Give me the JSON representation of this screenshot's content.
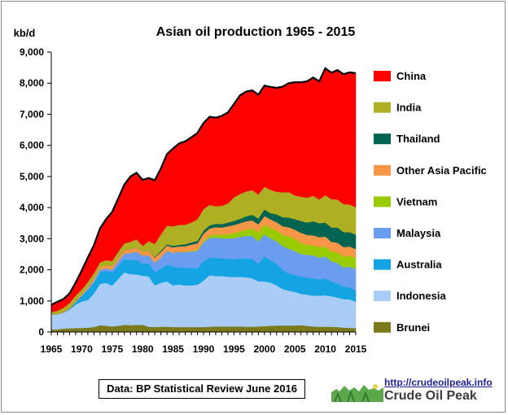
{
  "chart_data": {
    "type": "area",
    "stacked": true,
    "title": "Asian oil production 1965 - 2015",
    "unit_label": "kb/d",
    "xlabel": "",
    "ylabel": "",
    "x": [
      1965,
      1966,
      1967,
      1968,
      1969,
      1970,
      1971,
      1972,
      1973,
      1974,
      1975,
      1976,
      1977,
      1978,
      1979,
      1980,
      1981,
      1982,
      1983,
      1984,
      1985,
      1986,
      1987,
      1988,
      1989,
      1990,
      1991,
      1992,
      1993,
      1994,
      1995,
      1996,
      1997,
      1998,
      1999,
      2000,
      2001,
      2002,
      2003,
      2004,
      2005,
      2006,
      2007,
      2008,
      2009,
      2010,
      2011,
      2012,
      2013,
      2014,
      2015
    ],
    "xlim": [
      1965,
      2015
    ],
    "x_ticks": [
      1965,
      1970,
      1975,
      1980,
      1985,
      1990,
      1995,
      2000,
      2005,
      2010,
      2015
    ],
    "ylim": [
      0,
      9000
    ],
    "y_ticks": [
      0,
      1000,
      2000,
      3000,
      4000,
      5000,
      6000,
      7000,
      8000,
      9000
    ],
    "y_tick_labels": [
      "0",
      "1,000",
      "2,000",
      "3,000",
      "4,000",
      "5,000",
      "6,000",
      "7,000",
      "8,000",
      "9,000"
    ],
    "grid": false,
    "legend_position": "right",
    "series": [
      {
        "name": "Brunei",
        "color": "#7a7a1c",
        "values": [
          80,
          85,
          110,
          120,
          130,
          130,
          140,
          160,
          220,
          200,
          180,
          200,
          230,
          220,
          230,
          230,
          170,
          160,
          170,
          170,
          160,
          160,
          160,
          160,
          160,
          160,
          170,
          180,
          180,
          180,
          180,
          180,
          170,
          170,
          180,
          190,
          200,
          210,
          210,
          210,
          210,
          220,
          200,
          180,
          170,
          170,
          170,
          160,
          140,
          130,
          130
        ]
      },
      {
        "name": "Indonesia",
        "color": "#a9cdf6",
        "values": [
          480,
          480,
          510,
          600,
          750,
          850,
          890,
          1080,
          1330,
          1380,
          1310,
          1510,
          1690,
          1640,
          1620,
          1580,
          1620,
          1340,
          1410,
          1460,
          1340,
          1370,
          1340,
          1340,
          1360,
          1490,
          1660,
          1620,
          1620,
          1600,
          1590,
          1590,
          1590,
          1560,
          1450,
          1440,
          1390,
          1290,
          1170,
          1120,
          1080,
          1010,
          1000,
          990,
          1000,
          1010,
          980,
          950,
          920,
          920,
          840
        ]
      },
      {
        "name": "Australia",
        "color": "#14a4e4",
        "values": [
          5,
          5,
          10,
          30,
          80,
          180,
          320,
          330,
          370,
          390,
          420,
          420,
          420,
          460,
          460,
          380,
          420,
          430,
          450,
          540,
          600,
          550,
          570,
          560,
          530,
          630,
          560,
          590,
          560,
          590,
          560,
          600,
          600,
          620,
          560,
          800,
          720,
          690,
          620,
          550,
          550,
          550,
          550,
          550,
          520,
          550,
          480,
          450,
          400,
          380,
          370
        ]
      },
      {
        "name": "Malaysia",
        "color": "#6a9cf0",
        "values": [
          0,
          0,
          0,
          0,
          10,
          20,
          50,
          90,
          90,
          80,
          100,
          160,
          190,
          220,
          280,
          270,
          260,
          300,
          370,
          440,
          450,
          500,
          500,
          530,
          560,
          610,
          640,
          650,
          650,
          640,
          690,
          690,
          730,
          740,
          720,
          710,
          700,
          730,
          760,
          800,
          760,
          730,
          730,
          750,
          700,
          700,
          640,
          660,
          620,
          670,
          690
        ]
      },
      {
        "name": "Vietnam",
        "color": "#99cc00",
        "values": [
          0,
          0,
          0,
          0,
          0,
          0,
          0,
          0,
          0,
          0,
          0,
          0,
          0,
          0,
          0,
          0,
          0,
          0,
          0,
          0,
          0,
          5,
          10,
          20,
          30,
          40,
          80,
          100,
          120,
          140,
          160,
          180,
          200,
          240,
          290,
          320,
          340,
          350,
          360,
          400,
          390,
          360,
          320,
          320,
          340,
          320,
          320,
          350,
          350,
          360,
          350
        ]
      },
      {
        "name": "Other Asia Pacific",
        "color": "#f79646",
        "values": [
          20,
          20,
          30,
          30,
          40,
          40,
          60,
          80,
          90,
          100,
          110,
          110,
          120,
          130,
          130,
          130,
          150,
          160,
          170,
          170,
          170,
          170,
          180,
          200,
          210,
          230,
          220,
          230,
          230,
          250,
          260,
          260,
          270,
          260,
          260,
          270,
          270,
          260,
          280,
          290,
          300,
          320,
          320,
          320,
          320,
          320,
          310,
          300,
          300,
          290,
          290
        ]
      },
      {
        "name": "Thailand",
        "color": "#006450",
        "values": [
          0,
          0,
          0,
          0,
          0,
          0,
          0,
          0,
          0,
          0,
          0,
          0,
          0,
          0,
          0,
          0,
          0,
          20,
          40,
          40,
          50,
          50,
          60,
          70,
          80,
          100,
          100,
          110,
          110,
          120,
          130,
          140,
          160,
          180,
          190,
          210,
          200,
          250,
          290,
          310,
          340,
          380,
          400,
          450,
          450,
          450,
          460,
          490,
          480,
          460,
          460
        ]
      },
      {
        "name": "India",
        "color": "#afaf23",
        "values": [
          60,
          90,
          120,
          150,
          160,
          140,
          150,
          150,
          140,
          160,
          160,
          180,
          200,
          230,
          260,
          180,
          300,
          420,
          530,
          600,
          630,
          640,
          630,
          640,
          700,
          690,
          660,
          560,
          590,
          610,
          760,
          800,
          800,
          790,
          770,
          730,
          750,
          730,
          800,
          820,
          760,
          780,
          800,
          820,
          760,
          880,
          910,
          900,
          900,
          890,
          880
        ]
      },
      {
        "name": "China",
        "color": "#ff0000",
        "values": [
          230,
          290,
          280,
          310,
          420,
          620,
          780,
          900,
          1090,
          1320,
          1580,
          1720,
          1890,
          2100,
          2140,
          2120,
          2030,
          2050,
          2120,
          2300,
          2500,
          2620,
          2680,
          2740,
          2770,
          2770,
          2830,
          2850,
          2890,
          2930,
          3000,
          3170,
          3210,
          3210,
          3210,
          3250,
          3310,
          3340,
          3400,
          3500,
          3640,
          3680,
          3740,
          3800,
          3800,
          4080,
          4070,
          4160,
          4180,
          4250,
          4310
        ]
      }
    ]
  },
  "source_note": "Data: BP Statistical Review June 2016",
  "website": "http://crudeoilpeak.info",
  "logo_text": "Crude Oil Peak"
}
